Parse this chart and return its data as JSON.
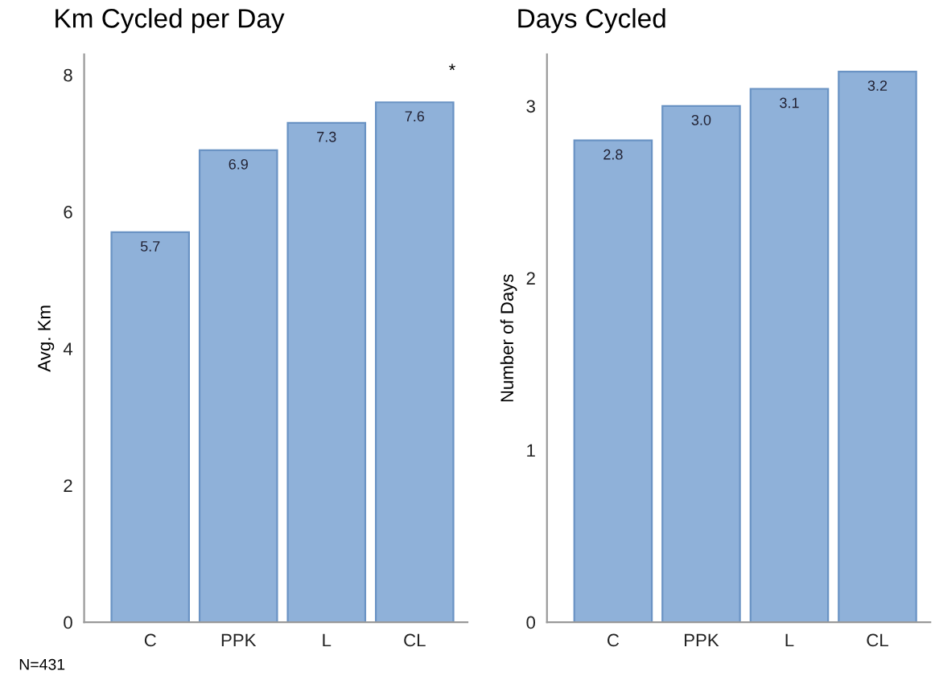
{
  "chart_data": [
    {
      "type": "bar",
      "title": "Km Cycled per Day",
      "ylabel": "Avg. Km",
      "categories": [
        "C",
        "PPK",
        "L",
        "CL"
      ],
      "values": [
        5.7,
        6.9,
        7.3,
        7.6
      ],
      "color": "#8fb1d9",
      "value_labels": [
        "5.7",
        "6.9",
        "7.3",
        "7.6"
      ],
      "ylim": [
        0,
        8.3
      ],
      "yticks": [
        0,
        2,
        4,
        6,
        8
      ],
      "grid": false,
      "legend": false,
      "annotations": [
        "*",
        "N=431"
      ]
    },
    {
      "type": "bar",
      "title": "Days Cycled",
      "ylabel": "Number of Days",
      "categories": [
        "C",
        "PPK",
        "L",
        "CL"
      ],
      "values": [
        2.8,
        3.0,
        3.1,
        3.2
      ],
      "color": "#8fb1d9",
      "value_labels": [
        "2.8",
        "3.0",
        "3.1",
        "3.2"
      ],
      "ylim": [
        0,
        3.3
      ],
      "yticks": [
        0,
        1,
        2,
        3
      ],
      "grid": false,
      "legend": false
    }
  ]
}
